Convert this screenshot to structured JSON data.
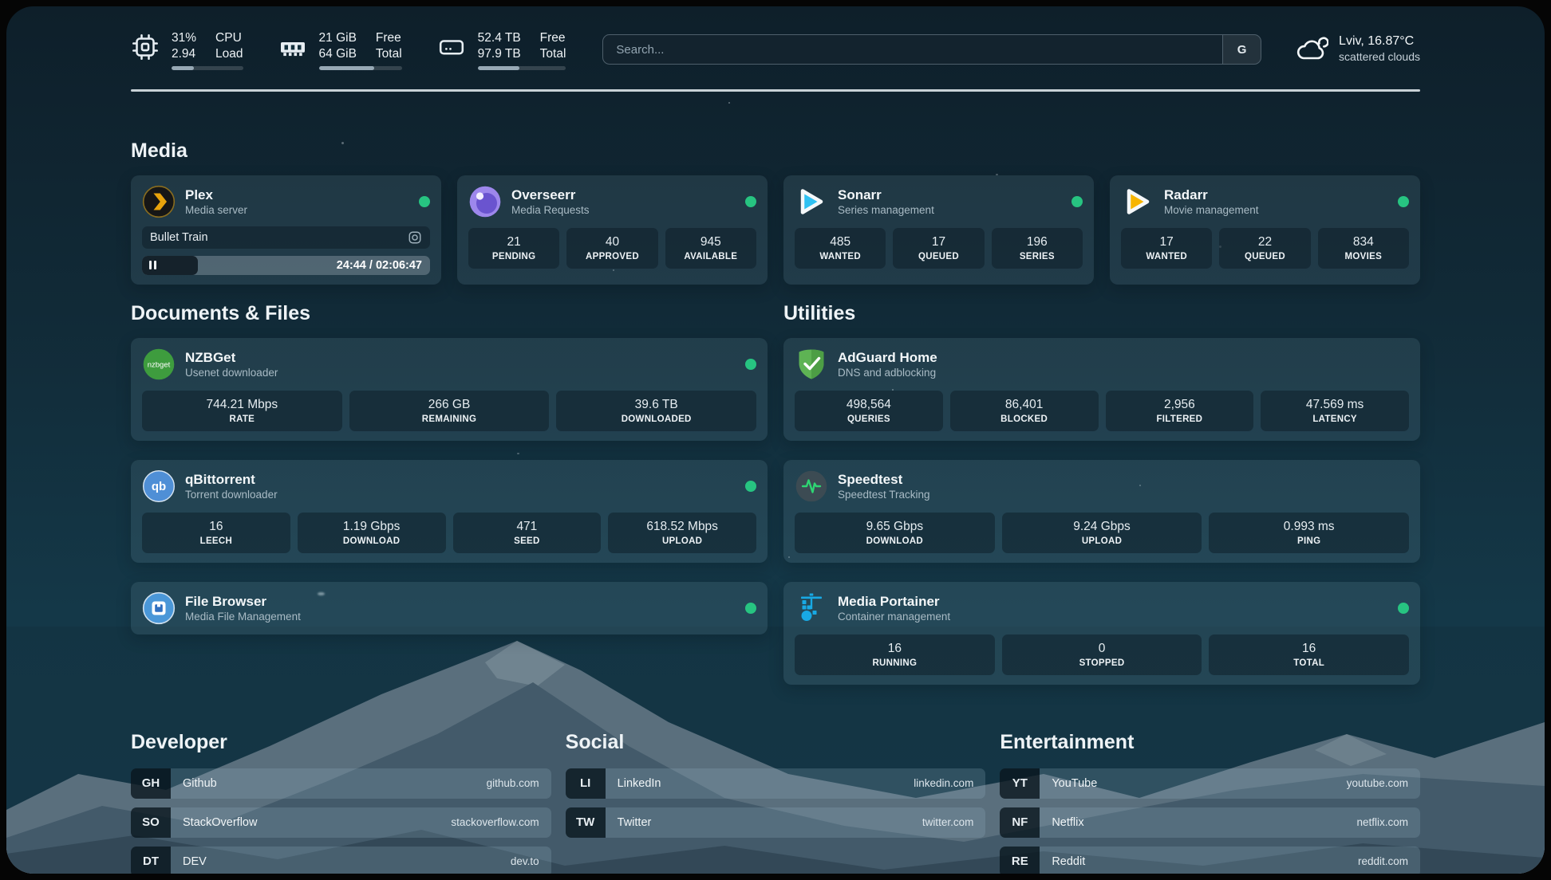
{
  "header": {
    "stats": [
      {
        "icon": "cpu-icon",
        "value_top": "31%",
        "value_bottom": "2.94",
        "label_top": "CPU",
        "label_bottom": "Load",
        "progress_pct": 31
      },
      {
        "icon": "memory-icon",
        "value_top": "21 GiB",
        "value_bottom": "64 GiB",
        "label_top": "Free",
        "label_bottom": "Total",
        "progress_pct": 67
      },
      {
        "icon": "disk-icon",
        "value_top": "52.4 TB",
        "value_bottom": "97.9 TB",
        "label_top": "Free",
        "label_bottom": "Total",
        "progress_pct": 47
      }
    ],
    "search": {
      "placeholder": "Search...",
      "engine_button": "G"
    },
    "weather": {
      "summary": "Lviv, 16.87°C",
      "condition": "scattered clouds"
    }
  },
  "sections": {
    "media": {
      "title": "Media",
      "apps": {
        "plex": {
          "name": "Plex",
          "subtitle": "Media server",
          "status": "online",
          "now_playing": {
            "title": "Bullet Train",
            "time": "24:44 / 02:06:47",
            "progress_pct": 19.5
          }
        },
        "overseerr": {
          "name": "Overseerr",
          "subtitle": "Media Requests",
          "status": "online",
          "stats": [
            {
              "value": "21",
              "label": "PENDING"
            },
            {
              "value": "40",
              "label": "APPROVED"
            },
            {
              "value": "945",
              "label": "AVAILABLE"
            }
          ]
        },
        "sonarr": {
          "name": "Sonarr",
          "subtitle": "Series management",
          "status": "online",
          "stats": [
            {
              "value": "485",
              "label": "WANTED"
            },
            {
              "value": "17",
              "label": "QUEUED"
            },
            {
              "value": "196",
              "label": "SERIES"
            }
          ]
        },
        "radarr": {
          "name": "Radarr",
          "subtitle": "Movie management",
          "status": "online",
          "stats": [
            {
              "value": "17",
              "label": "WANTED"
            },
            {
              "value": "22",
              "label": "QUEUED"
            },
            {
              "value": "834",
              "label": "MOVIES"
            }
          ]
        }
      }
    },
    "documents": {
      "title": "Documents & Files",
      "apps": {
        "nzbget": {
          "name": "NZBGet",
          "subtitle": "Usenet downloader",
          "status": "online",
          "icon_text": "nzbget",
          "stats": [
            {
              "value": "744.21 Mbps",
              "label": "RATE"
            },
            {
              "value": "266 GB",
              "label": "REMAINING"
            },
            {
              "value": "39.6 TB",
              "label": "DOWNLOADED"
            }
          ]
        },
        "qbittorrent": {
          "name": "qBittorrent",
          "subtitle": "Torrent downloader",
          "status": "online",
          "icon_text": "qb",
          "stats": [
            {
              "value": "16",
              "label": "LEECH"
            },
            {
              "value": "1.19 Gbps",
              "label": "DOWNLOAD"
            },
            {
              "value": "471",
              "label": "SEED"
            },
            {
              "value": "618.52 Mbps",
              "label": "UPLOAD"
            }
          ]
        },
        "filebrowser": {
          "name": "File Browser",
          "subtitle": "Media File Management",
          "status": "online"
        }
      }
    },
    "utilities": {
      "title": "Utilities",
      "apps": {
        "adguard": {
          "name": "AdGuard Home",
          "subtitle": "DNS and adblocking",
          "stats": [
            {
              "value": "498,564",
              "label": "QUERIES"
            },
            {
              "value": "86,401",
              "label": "BLOCKED"
            },
            {
              "value": "2,956",
              "label": "FILTERED"
            },
            {
              "value": "47.569 ms",
              "label": "LATENCY"
            }
          ]
        },
        "speedtest": {
          "name": "Speedtest",
          "subtitle": "Speedtest Tracking",
          "stats": [
            {
              "value": "9.65 Gbps",
              "label": "DOWNLOAD"
            },
            {
              "value": "9.24 Gbps",
              "label": "UPLOAD"
            },
            {
              "value": "0.993 ms",
              "label": "PING"
            }
          ]
        },
        "portainer": {
          "name": "Media Portainer",
          "subtitle": "Container management",
          "status": "online",
          "stats": [
            {
              "value": "16",
              "label": "RUNNING"
            },
            {
              "value": "0",
              "label": "STOPPED"
            },
            {
              "value": "16",
              "label": "TOTAL"
            }
          ]
        }
      }
    },
    "bookmarks": {
      "developer": {
        "title": "Developer",
        "links": [
          {
            "abbr": "GH",
            "name": "Github",
            "url": "github.com"
          },
          {
            "abbr": "SO",
            "name": "StackOverflow",
            "url": "stackoverflow.com"
          },
          {
            "abbr": "DT",
            "name": "DEV",
            "url": "dev.to"
          }
        ]
      },
      "social": {
        "title": "Social",
        "links": [
          {
            "abbr": "LI",
            "name": "LinkedIn",
            "url": "linkedin.com"
          },
          {
            "abbr": "TW",
            "name": "Twitter",
            "url": "twitter.com"
          }
        ]
      },
      "entertainment": {
        "title": "Entertainment",
        "links": [
          {
            "abbr": "YT",
            "name": "YouTube",
            "url": "youtube.com"
          },
          {
            "abbr": "NF",
            "name": "Netflix",
            "url": "netflix.com"
          },
          {
            "abbr": "RE",
            "name": "Reddit",
            "url": "reddit.com"
          }
        ]
      }
    }
  },
  "colors": {
    "status_online": "#27c481",
    "plex_accent": "#e8a30c",
    "sonarr_accent": "#2fc1f2",
    "radarr_accent": "#f7b500",
    "overseerr_accent": "#9d87ec",
    "adguard_accent": "#5eb354",
    "speedtest_accent": "#2ed573",
    "portainer_accent": "#18a9e4",
    "nzbget_accent": "#3e9c3e",
    "qbittorrent_accent": "#4f8fd6"
  }
}
